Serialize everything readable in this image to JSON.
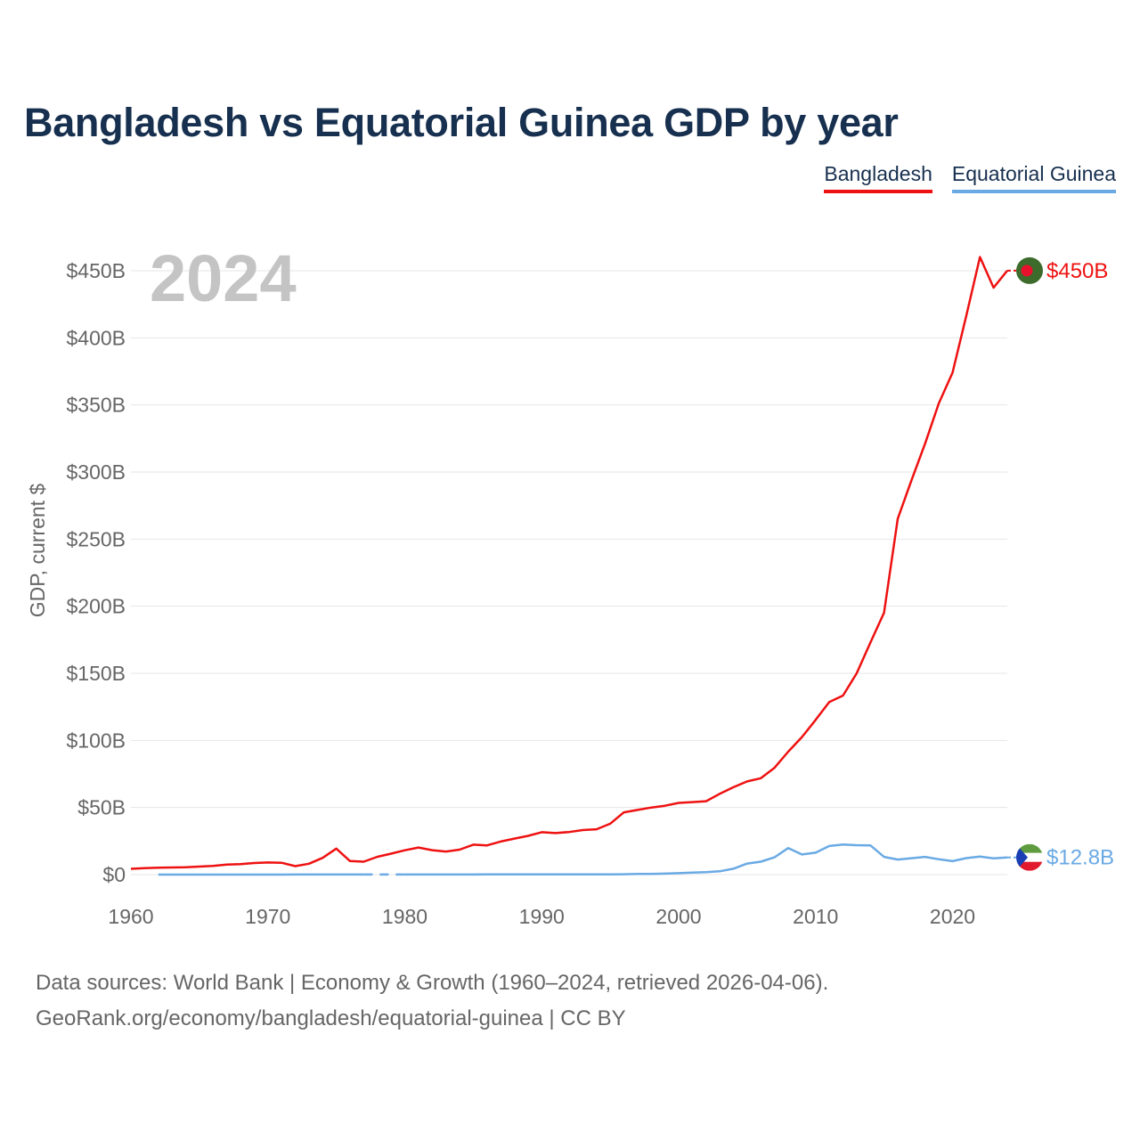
{
  "chart_data": {
    "type": "line",
    "title": "Bangladesh vs Equatorial Guinea GDP by year",
    "ylabel": "GDP, current $",
    "xlabel": "",
    "year_label": "2024",
    "xlim": [
      1960,
      2024
    ],
    "ylim": [
      0,
      450
    ],
    "x_ticks": [
      1960,
      1970,
      1980,
      1990,
      2000,
      2010,
      2020
    ],
    "x_tick_labels": [
      "1960",
      "1970",
      "1980",
      "1990",
      "2000",
      "2010",
      "2020"
    ],
    "y_ticks": [
      0,
      50,
      100,
      150,
      200,
      250,
      300,
      350,
      400,
      450
    ],
    "y_tick_labels": [
      "$0",
      "$50B",
      "$100B",
      "$150B",
      "$200B",
      "$250B",
      "$300B",
      "$350B",
      "$400B",
      "$450B"
    ],
    "grid": true,
    "legend_position": "top-right",
    "series": [
      {
        "name": "Bangladesh",
        "color": "#ee1111",
        "end_label": "$450B",
        "flag_icon": "bangladesh-flag-icon",
        "x": [
          1960,
          1961,
          1962,
          1963,
          1964,
          1965,
          1966,
          1967,
          1968,
          1969,
          1970,
          1971,
          1972,
          1973,
          1974,
          1975,
          1976,
          1977,
          1978,
          1979,
          1980,
          1981,
          1982,
          1983,
          1984,
          1985,
          1986,
          1987,
          1988,
          1989,
          1990,
          1991,
          1992,
          1993,
          1994,
          1995,
          1996,
          1997,
          1998,
          1999,
          2000,
          2001,
          2002,
          2003,
          2004,
          2005,
          2006,
          2007,
          2008,
          2009,
          2010,
          2011,
          2012,
          2013,
          2014,
          2015,
          2016,
          2017,
          2018,
          2019,
          2020,
          2021,
          2022,
          2023,
          2024
        ],
        "values": [
          4.3,
          4.8,
          5.1,
          5.3,
          5.5,
          6.0,
          6.5,
          7.5,
          7.8,
          8.6,
          9.0,
          8.8,
          6.3,
          8.1,
          12.5,
          19.4,
          10.1,
          9.6,
          13.3,
          15.6,
          18.1,
          20.2,
          18.2,
          17.2,
          18.6,
          22.3,
          21.8,
          24.6,
          26.8,
          28.9,
          31.6,
          30.9,
          31.7,
          33.2,
          33.8,
          37.9,
          46.4,
          48.2,
          50.0,
          51.3,
          53.4,
          54.0,
          54.7,
          60.2,
          65.1,
          69.4,
          71.8,
          79.6,
          91.6,
          102.5,
          115.3,
          128.6,
          133.4,
          150.0,
          172.9,
          195.1,
          265.2,
          293.8,
          321.4,
          351.2,
          374.0,
          416.3,
          460.2,
          437.4,
          450.1
        ]
      },
      {
        "name": "Equatorial Guinea",
        "color": "#6aaae4",
        "end_label": "$12.8B",
        "flag_icon": "equatorial-guinea-flag-icon",
        "x": [
          1962,
          1963,
          1964,
          1965,
          1966,
          1967,
          1968,
          1969,
          1970,
          1971,
          1972,
          1973,
          1974,
          1975,
          1976,
          1977,
          1978,
          1979,
          1980,
          1981,
          1982,
          1983,
          1984,
          1985,
          1986,
          1987,
          1988,
          1989,
          1990,
          1991,
          1992,
          1993,
          1994,
          1995,
          1996,
          1997,
          1998,
          1999,
          2000,
          2001,
          2002,
          2003,
          2004,
          2005,
          2006,
          2007,
          2008,
          2009,
          2010,
          2011,
          2012,
          2013,
          2014,
          2015,
          2016,
          2017,
          2018,
          2019,
          2020,
          2021,
          2022,
          2023,
          2024
        ],
        "values": [
          0.02,
          0.02,
          0.03,
          0.03,
          0.03,
          0.03,
          0.03,
          0.03,
          0.03,
          0.03,
          0.04,
          0.05,
          0.06,
          0.07,
          0.07,
          0.07,
          null,
          null,
          0.07,
          0.08,
          0.09,
          0.08,
          0.08,
          0.09,
          0.11,
          0.13,
          0.13,
          0.12,
          0.13,
          0.13,
          0.15,
          0.16,
          0.13,
          0.16,
          0.28,
          0.52,
          0.45,
          0.7,
          1.05,
          1.46,
          1.81,
          2.48,
          4.41,
          8.22,
          9.6,
          12.9,
          19.8,
          15.0,
          16.3,
          21.3,
          22.4,
          21.9,
          21.8,
          13.2,
          11.2,
          12.2,
          13.2,
          11.4,
          10.0,
          12.3,
          13.5,
          12.1,
          12.8
        ]
      }
    ]
  },
  "legend": {
    "bangladesh_label": "Bangladesh",
    "eq_guinea_label": "Equatorial Guinea"
  },
  "footer": {
    "line1": "Data sources: World Bank | Economy & Growth (1960–2024, retrieved 2026-04-06).",
    "line2": "GeoRank.org/economy/bangladesh/equatorial-guinea | CC BY"
  },
  "colors": {
    "title": "#17304f",
    "tick_text": "#666666",
    "grid": "#e6e6e6",
    "year_watermark": "#c4c4c4",
    "bangladesh_flag_green": "#3d6b2c",
    "bangladesh_flag_red": "#e8112d",
    "eqg_flag_blue": "#1a3fb4",
    "eqg_flag_green": "#5e9c3f",
    "eqg_flag_white": "#ffffff",
    "eqg_flag_red": "#e2182c"
  }
}
